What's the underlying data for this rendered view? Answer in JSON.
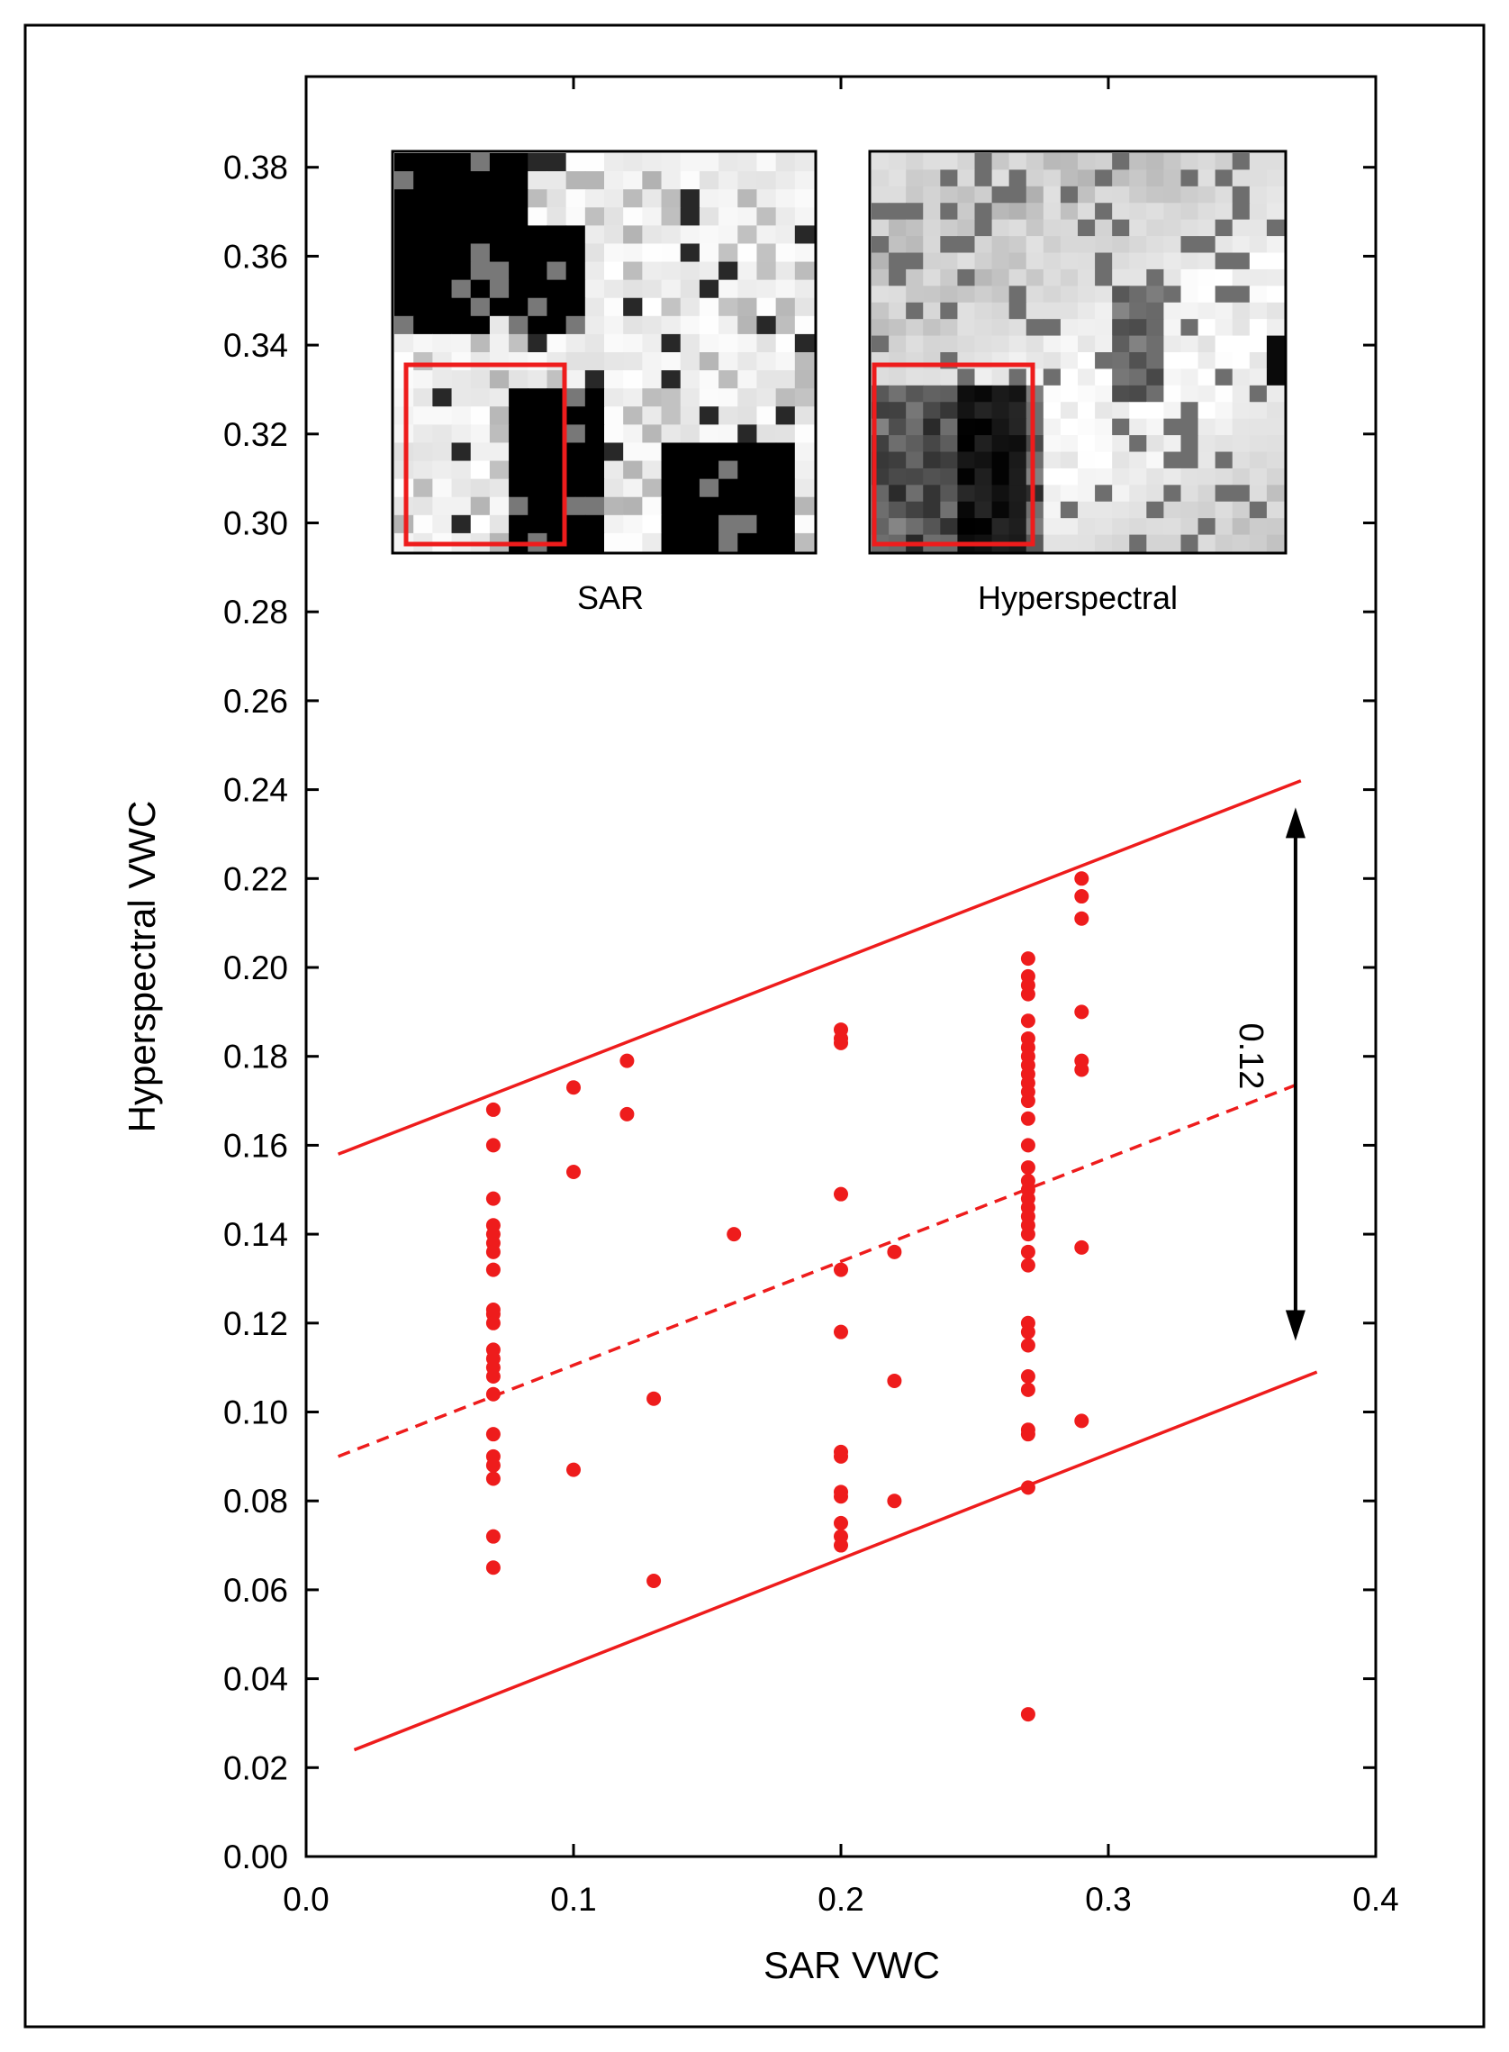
{
  "chart_data": {
    "type": "scatter",
    "xlabel": "SAR VWC",
    "ylabel": "Hyperspectral VWC",
    "xlim": [
      0.0,
      0.4
    ],
    "ylim": [
      0.0,
      0.4
    ],
    "x_ticks": [
      "0.0",
      "0.1",
      "0.2",
      "0.3",
      "0.4"
    ],
    "x_tick_values": [
      0.0,
      0.1,
      0.2,
      0.3,
      0.4
    ],
    "y_ticks": [
      "0.00",
      "0.02",
      "0.04",
      "0.06",
      "0.08",
      "0.10",
      "0.12",
      "0.14",
      "0.16",
      "0.18",
      "0.20",
      "0.22",
      "0.24",
      "0.26",
      "0.28",
      "0.30",
      "0.32",
      "0.34",
      "0.36",
      "0.38"
    ],
    "y_tick_values": [
      0.0,
      0.02,
      0.04,
      0.06,
      0.08,
      0.1,
      0.12,
      0.14,
      0.16,
      0.18,
      0.2,
      0.22,
      0.24,
      0.26,
      0.28,
      0.3,
      0.32,
      0.34,
      0.36,
      0.38
    ],
    "grid": false,
    "colors": {
      "points": "#ee1c1c",
      "lines": "#ee1c1c",
      "arrow": "#000000"
    },
    "points": [
      [
        0.07,
        0.168
      ],
      [
        0.07,
        0.16
      ],
      [
        0.07,
        0.148
      ],
      [
        0.07,
        0.142
      ],
      [
        0.07,
        0.14
      ],
      [
        0.07,
        0.138
      ],
      [
        0.07,
        0.136
      ],
      [
        0.07,
        0.132
      ],
      [
        0.07,
        0.123
      ],
      [
        0.07,
        0.122
      ],
      [
        0.07,
        0.12
      ],
      [
        0.07,
        0.114
      ],
      [
        0.07,
        0.112
      ],
      [
        0.07,
        0.11
      ],
      [
        0.07,
        0.108
      ],
      [
        0.07,
        0.104
      ],
      [
        0.07,
        0.095
      ],
      [
        0.07,
        0.09
      ],
      [
        0.07,
        0.088
      ],
      [
        0.07,
        0.085
      ],
      [
        0.07,
        0.072
      ],
      [
        0.07,
        0.065
      ],
      [
        0.1,
        0.173
      ],
      [
        0.1,
        0.154
      ],
      [
        0.1,
        0.087
      ],
      [
        0.12,
        0.179
      ],
      [
        0.12,
        0.167
      ],
      [
        0.13,
        0.103
      ],
      [
        0.13,
        0.062
      ],
      [
        0.16,
        0.14
      ],
      [
        0.2,
        0.186
      ],
      [
        0.2,
        0.184
      ],
      [
        0.2,
        0.183
      ],
      [
        0.2,
        0.149
      ],
      [
        0.2,
        0.132
      ],
      [
        0.2,
        0.118
      ],
      [
        0.2,
        0.091
      ],
      [
        0.2,
        0.09
      ],
      [
        0.2,
        0.082
      ],
      [
        0.2,
        0.081
      ],
      [
        0.2,
        0.075
      ],
      [
        0.2,
        0.072
      ],
      [
        0.2,
        0.07
      ],
      [
        0.22,
        0.136
      ],
      [
        0.22,
        0.107
      ],
      [
        0.22,
        0.08
      ],
      [
        0.27,
        0.202
      ],
      [
        0.27,
        0.198
      ],
      [
        0.27,
        0.196
      ],
      [
        0.27,
        0.194
      ],
      [
        0.27,
        0.188
      ],
      [
        0.27,
        0.184
      ],
      [
        0.27,
        0.182
      ],
      [
        0.27,
        0.18
      ],
      [
        0.27,
        0.178
      ],
      [
        0.27,
        0.176
      ],
      [
        0.27,
        0.174
      ],
      [
        0.27,
        0.172
      ],
      [
        0.27,
        0.17
      ],
      [
        0.27,
        0.166
      ],
      [
        0.27,
        0.16
      ],
      [
        0.27,
        0.155
      ],
      [
        0.27,
        0.152
      ],
      [
        0.27,
        0.15
      ],
      [
        0.27,
        0.148
      ],
      [
        0.27,
        0.146
      ],
      [
        0.27,
        0.144
      ],
      [
        0.27,
        0.142
      ],
      [
        0.27,
        0.14
      ],
      [
        0.27,
        0.136
      ],
      [
        0.27,
        0.133
      ],
      [
        0.27,
        0.12
      ],
      [
        0.27,
        0.118
      ],
      [
        0.27,
        0.115
      ],
      [
        0.27,
        0.108
      ],
      [
        0.27,
        0.105
      ],
      [
        0.27,
        0.096
      ],
      [
        0.27,
        0.095
      ],
      [
        0.27,
        0.083
      ],
      [
        0.27,
        0.032
      ],
      [
        0.29,
        0.22
      ],
      [
        0.29,
        0.216
      ],
      [
        0.29,
        0.211
      ],
      [
        0.29,
        0.19
      ],
      [
        0.29,
        0.179
      ],
      [
        0.29,
        0.177
      ],
      [
        0.29,
        0.137
      ],
      [
        0.29,
        0.098
      ]
    ],
    "lines": [
      {
        "style": "dashed",
        "x": [
          0.012,
          0.372
        ],
        "y": [
          0.09,
          0.174
        ]
      },
      {
        "style": "solid",
        "x": [
          0.012,
          0.372
        ],
        "y": [
          0.158,
          0.242
        ]
      },
      {
        "style": "solid",
        "x": [
          0.018,
          0.378
        ],
        "y": [
          0.024,
          0.109
        ]
      }
    ],
    "annotation": {
      "text": "0.12",
      "arrow_x": 0.37,
      "arrow_y": [
        0.116,
        0.236
      ]
    },
    "insets": [
      {
        "caption": "SAR"
      },
      {
        "caption": "Hyperspectral"
      }
    ]
  }
}
